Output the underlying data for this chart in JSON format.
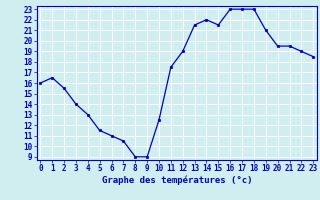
{
  "x": [
    0,
    1,
    2,
    3,
    4,
    5,
    6,
    7,
    8,
    9,
    10,
    11,
    12,
    13,
    14,
    15,
    16,
    17,
    18,
    19,
    20,
    21,
    22,
    23
  ],
  "y": [
    16,
    16.5,
    15.5,
    14,
    13,
    11.5,
    11,
    10.5,
    9,
    9,
    12.5,
    17.5,
    19,
    21.5,
    22,
    21.5,
    23,
    23,
    23,
    21,
    19.5,
    19.5,
    19,
    18.5
  ],
  "line_color": "#0000cc",
  "marker": "o",
  "marker_size": 1.8,
  "bg_color": "#d0eef0",
  "grid_color": "#ffffff",
  "axis_color": "#0000cc",
  "xlabel": "Graphe des températures (°c)",
  "xlabel_fontsize": 6.5,
  "tick_fontsize": 5.5,
  "ylim_min": 9,
  "ylim_max": 23,
  "xlim_min": 0,
  "xlim_max": 23,
  "yticks": [
    9,
    10,
    11,
    12,
    13,
    14,
    15,
    16,
    17,
    18,
    19,
    20,
    21,
    22,
    23
  ],
  "xticks": [
    0,
    1,
    2,
    3,
    4,
    5,
    6,
    7,
    8,
    9,
    10,
    11,
    12,
    13,
    14,
    15,
    16,
    17,
    18,
    19,
    20,
    21,
    22,
    23
  ]
}
